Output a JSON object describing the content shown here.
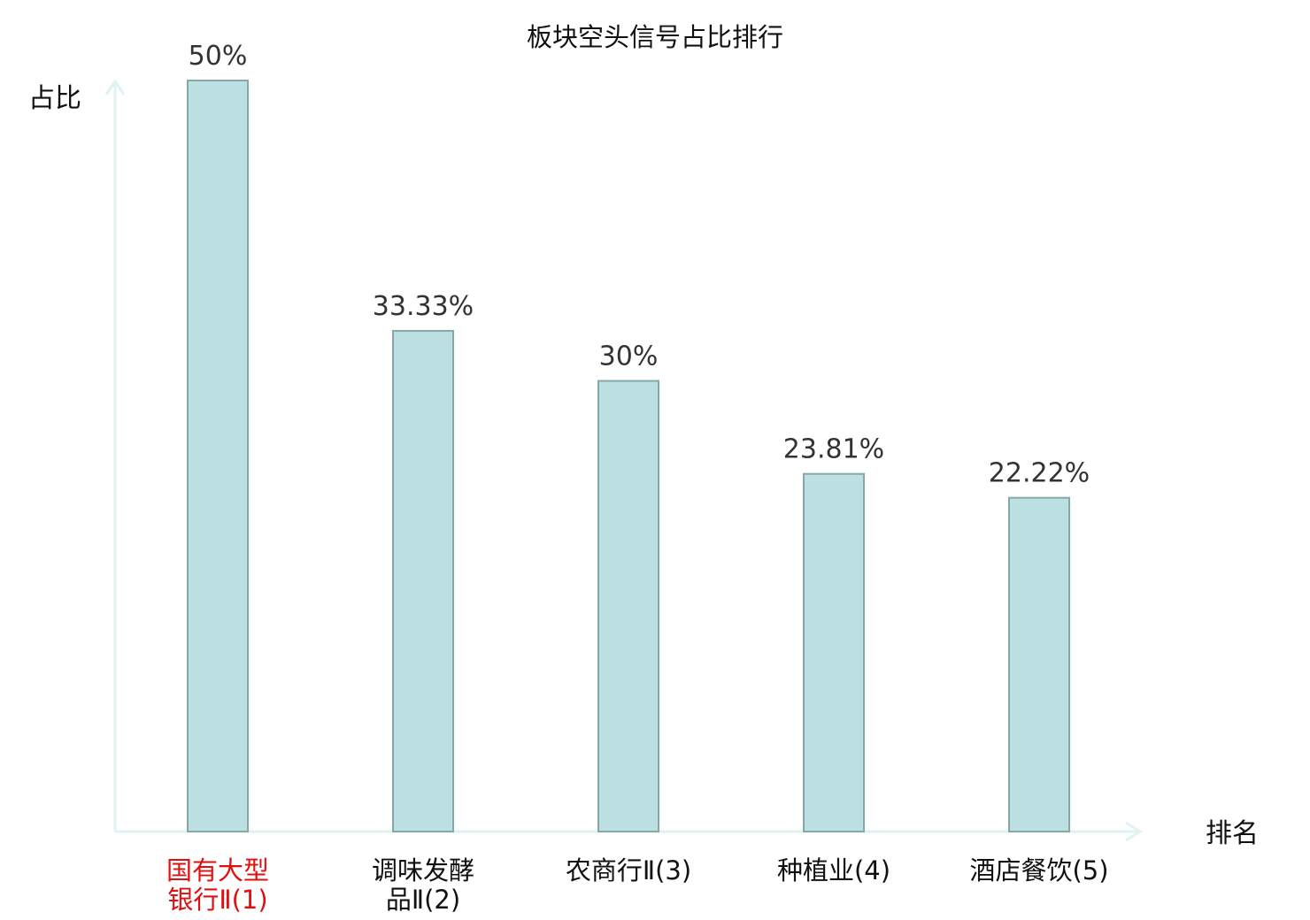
{
  "chart_data": {
    "type": "bar",
    "title": "板块空头信号占比排行",
    "ylabel": "占比",
    "xlabel": "排名",
    "categories": [
      {
        "lines": [
          "国有大型",
          "银行Ⅱ(1)"
        ],
        "highlight": true
      },
      {
        "lines": [
          "调味发酵",
          "品Ⅱ(2)"
        ],
        "highlight": false
      },
      {
        "lines": [
          "农商行Ⅱ(3)"
        ],
        "highlight": false
      },
      {
        "lines": [
          "种植业(4)"
        ],
        "highlight": false
      },
      {
        "lines": [
          "酒店餐饮(5)"
        ],
        "highlight": false
      }
    ],
    "values": [
      50,
      33.33,
      30,
      23.81,
      22.22
    ],
    "value_labels": [
      "50%",
      "33.33%",
      "30%",
      "23.81%",
      "22.22%"
    ],
    "ylim": [
      0,
      50
    ],
    "grid": false,
    "legend": "none",
    "colors": {
      "bar_fill": "#bde0e2",
      "bar_stroke": "#86a8a8",
      "axis": "#e0f2f1",
      "highlight_text": "#e01010",
      "label_text": "#111111",
      "value_text": "#333333"
    }
  }
}
